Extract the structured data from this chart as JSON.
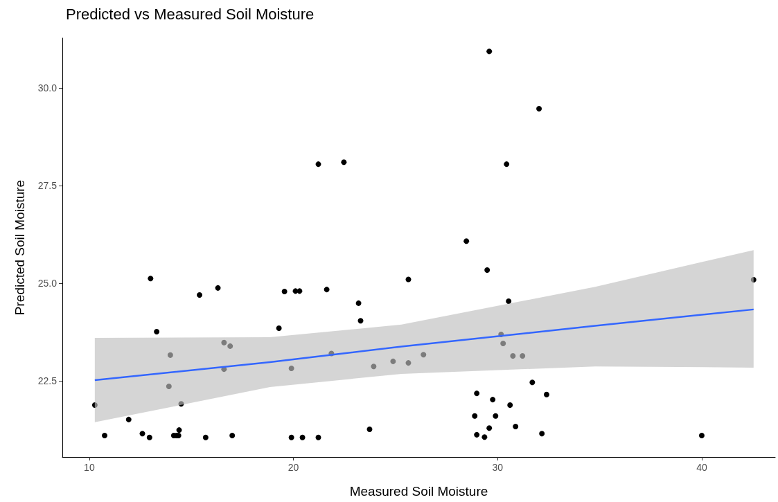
{
  "chart_data": {
    "type": "scatter",
    "title": "Predicted vs Measured Soil Moisture",
    "xlabel": "Measured Soil Moisture",
    "ylabel": "Predicted Soil Moisture",
    "xlim": [
      8.68,
      43.6
    ],
    "ylim": [
      20.55,
      31.28
    ],
    "xticks": [
      10,
      20,
      30,
      40
    ],
    "yticks": [
      {
        "value": 22.5,
        "label": "22.5"
      },
      {
        "value": 25,
        "label": "25.0"
      },
      {
        "value": 27.5,
        "label": "27.5"
      },
      {
        "value": 30,
        "label": "30.0"
      }
    ],
    "grid": false,
    "series": [
      {
        "marker": "circle",
        "color": "#000000",
        "x": [
          10.27,
          10.75,
          11.93,
          12.6,
          12.95,
          13.0,
          13.3,
          13.9,
          13.97,
          14.14,
          14.27,
          14.37,
          14.4,
          14.5,
          15.4,
          15.7,
          16.3,
          16.6,
          16.6,
          16.9,
          17.0,
          19.29,
          19.56,
          19.9,
          19.9,
          20.1,
          20.3,
          20.44,
          21.22,
          21.22,
          21.63,
          21.86,
          22.47,
          23.19,
          23.29,
          23.73,
          23.93,
          24.88,
          25.63,
          25.63,
          26.37,
          28.47,
          28.88,
          28.98,
          28.98,
          29.36,
          29.49,
          29.59,
          29.59,
          29.76,
          29.9,
          30.17,
          30.27,
          30.44,
          30.54,
          30.61,
          30.75,
          30.88,
          31.22,
          31.7,
          32.03,
          32.17,
          32.4,
          40.0,
          42.54
        ],
        "values": [
          21.88,
          21.1,
          21.51,
          21.15,
          21.05,
          25.12,
          23.76,
          22.36,
          23.16,
          21.1,
          21.1,
          21.1,
          21.24,
          21.91,
          24.7,
          21.05,
          24.88,
          23.48,
          22.8,
          23.39,
          21.1,
          23.85,
          24.79,
          21.05,
          22.82,
          24.8,
          24.8,
          21.05,
          28.05,
          21.05,
          24.84,
          23.2,
          28.1,
          24.49,
          24.04,
          21.26,
          22.87,
          23.0,
          25.1,
          22.96,
          23.17,
          26.08,
          21.6,
          22.18,
          21.12,
          21.06,
          25.34,
          30.94,
          21.29,
          22.02,
          21.6,
          23.69,
          23.46,
          28.05,
          24.54,
          21.88,
          23.14,
          21.33,
          23.14,
          22.46,
          29.47,
          21.15,
          22.15,
          21.1,
          25.09
        ]
      },
      {
        "type": "line",
        "marker": "none",
        "color": "#3366ff",
        "x": [
          10.27,
          18.85,
          25.29,
          34.78,
          42.54
        ],
        "values": [
          22.52,
          22.98,
          23.38,
          23.91,
          24.33
        ],
        "lower": [
          21.44,
          22.34,
          22.68,
          22.87,
          22.84
        ],
        "upper": [
          23.6,
          23.62,
          23.94,
          24.91,
          25.85
        ]
      }
    ]
  }
}
